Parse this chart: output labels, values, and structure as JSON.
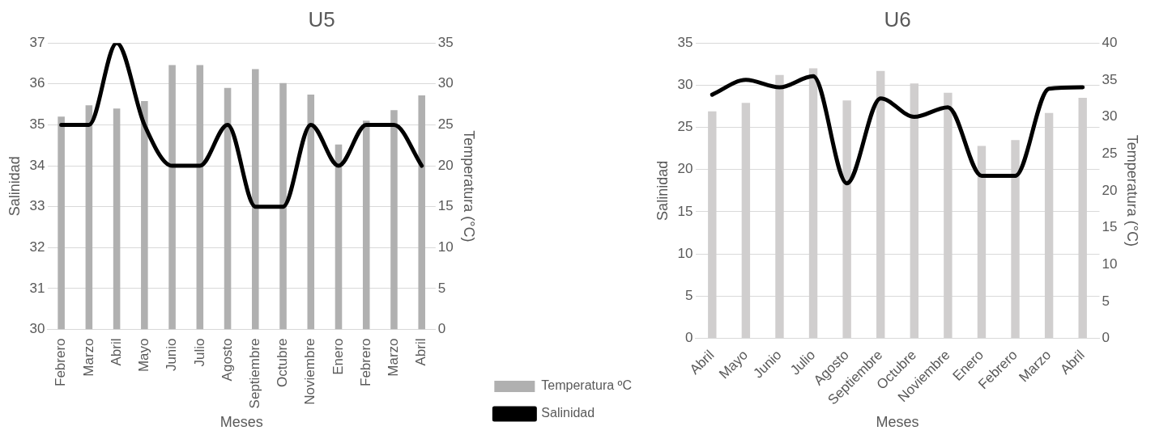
{
  "chart_data": [
    {
      "type": "bar",
      "title": "U5",
      "xlabel": "Meses",
      "ylabel": "Salinidad",
      "y2label": "Temperatura (°C)",
      "categories": [
        "Febrero",
        "Marzo",
        "Abril",
        "Mayo",
        "Junio",
        "Julio",
        "Agosto",
        "Septiembre",
        "Octubre",
        "Noviembre",
        "Enero",
        "Febrero",
        "Marzo",
        "Abril"
      ],
      "series": [
        {
          "name": "Temperatura ºC",
          "axis": "y2",
          "color": "#b0b0b0",
          "values": [
            26.0,
            27.4,
            27.0,
            27.9,
            32.3,
            32.3,
            29.5,
            31.8,
            30.1,
            28.7,
            22.6,
            25.5,
            26.8,
            28.6
          ]
        },
        {
          "name": "Salinidad",
          "type": "line",
          "axis": "y",
          "color": "#000000",
          "values": [
            35,
            35,
            37,
            35,
            34,
            34,
            35,
            33,
            33,
            35,
            34,
            35,
            35,
            34
          ]
        }
      ],
      "ylim": [
        30,
        37
      ],
      "yticks": [
        30,
        31,
        32,
        33,
        34,
        35,
        36,
        37
      ],
      "y2lim": [
        0,
        35
      ],
      "y2ticks": [
        0,
        5,
        10,
        15,
        20,
        25,
        30,
        35
      ],
      "grid": "y",
      "legend": "bottom right",
      "marker": "none",
      "line_style": "solid"
    },
    {
      "type": "bar",
      "title": "U6",
      "xlabel": "Meses",
      "ylabel": "Salinidad",
      "y2label": "Temperatura (°C)",
      "categories": [
        "Abril",
        "Mayo",
        "Junio",
        "Julio",
        "Agosto",
        "Septiembre",
        "Octubre",
        "Noviembre",
        "Enero",
        "Febrero",
        "Marzo",
        "Abril"
      ],
      "series": [
        {
          "axis": "y",
          "color": "#d0cece",
          "values": [
            26.9,
            27.9,
            31.2,
            32.0,
            28.2,
            31.7,
            30.2,
            29.1,
            22.8,
            23.5,
            26.7,
            28.5
          ]
        },
        {
          "type": "line",
          "axis": "y2",
          "color": "#000000",
          "values": [
            33,
            35,
            34,
            35.5,
            21,
            32.5,
            30,
            31.3,
            22,
            22,
            33.8,
            34
          ]
        }
      ],
      "ylim": [
        0,
        35
      ],
      "yticks": [
        0,
        5,
        10,
        15,
        20,
        25,
        30,
        35
      ],
      "y2lim": [
        0,
        40
      ],
      "y2ticks": [
        0,
        5,
        10,
        15,
        20,
        25,
        30,
        35,
        40
      ],
      "grid": "y",
      "legend": false,
      "marker": "none",
      "line_style": "solid"
    }
  ]
}
